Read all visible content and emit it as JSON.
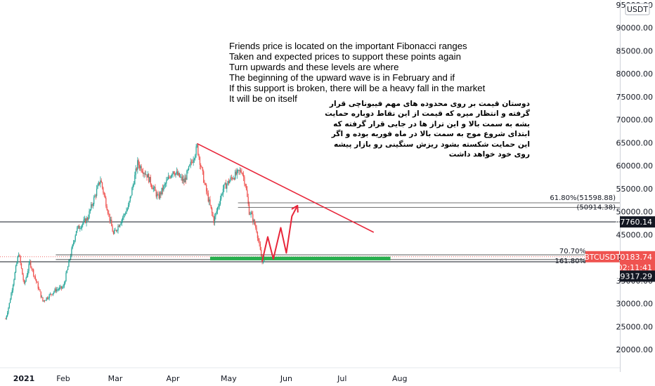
{
  "chart_data": {
    "type": "candlestick",
    "symbol": "BTCUSDT",
    "currency": "USDT",
    "y_axis": {
      "position": "right",
      "ylim": [
        16000,
        95000
      ],
      "ticks": [
        20000,
        25000,
        30000,
        35000,
        40000,
        45000,
        50000,
        55000,
        60000,
        65000,
        70000,
        75000,
        80000,
        85000,
        90000,
        95000
      ],
      "tick_labels": [
        "20000.00",
        "25000.00",
        "30000.00",
        "35000.00",
        "40000.00",
        "45000.00",
        "50000.00",
        "55000.00",
        "60000.00",
        "65000.00",
        "70000.00",
        "75000.00",
        "80000.00",
        "85000.00",
        "90000.00",
        "95000.00"
      ]
    },
    "x_axis": {
      "tick_labels": [
        "2021",
        "Feb",
        "Mar",
        "Apr",
        "May",
        "Jun",
        "Jul",
        "Aug"
      ],
      "tick_dates": [
        "2021-01-01",
        "2021-02-01",
        "2021-03-01",
        "2021-04-01",
        "2021-05-01",
        "2021-06-01",
        "2021-07-01",
        "2021-08-01"
      ],
      "range": [
        "2020-12-31",
        "2021-09-05"
      ]
    },
    "ohlc_close_path": [
      [
        "2020-12-31",
        25000
      ],
      [
        "2021-01-03",
        30000
      ],
      [
        "2021-01-08",
        41000
      ],
      [
        "2021-01-11",
        34000
      ],
      [
        "2021-01-14",
        39000
      ],
      [
        "2021-01-21",
        30500
      ],
      [
        "2021-01-28",
        33000
      ],
      [
        "2021-02-01",
        33500
      ],
      [
        "2021-02-08",
        46000
      ],
      [
        "2021-02-14",
        48500
      ],
      [
        "2021-02-21",
        57000
      ],
      [
        "2021-02-28",
        45000
      ],
      [
        "2021-03-08",
        51000
      ],
      [
        "2021-03-13",
        60500
      ],
      [
        "2021-03-18",
        58000
      ],
      [
        "2021-03-24",
        53000
      ],
      [
        "2021-04-01",
        59000
      ],
      [
        "2021-04-07",
        56500
      ],
      [
        "2021-04-14",
        64000
      ],
      [
        "2021-04-18",
        56000
      ],
      [
        "2021-04-23",
        48000
      ],
      [
        "2021-04-28",
        55000
      ],
      [
        "2021-05-03",
        57500
      ],
      [
        "2021-05-08",
        59000
      ],
      [
        "2021-05-10",
        56000
      ],
      [
        "2021-05-12",
        50000
      ],
      [
        "2021-05-13",
        49500
      ],
      [
        "2021-05-16",
        46000
      ],
      [
        "2021-05-19",
        39000
      ],
      [
        "2021-05-20",
        40000
      ]
    ],
    "price_lines": [
      {
        "name": "last_price",
        "value": 40183.74,
        "label": "40183.74",
        "color": "#ef5350"
      },
      {
        "name": "countdown",
        "label": "02:11:41",
        "color": "#ef5350"
      },
      {
        "name": "level_upper",
        "value": 47760.14,
        "label": "47760.14",
        "color": "#131722"
      },
      {
        "name": "level_lower",
        "value": 39317.29,
        "label": "39317.29",
        "color": "#131722"
      }
    ],
    "symbol_badge": {
      "label": "BTCUSDT",
      "color": "#ef5350"
    },
    "fib_levels": [
      {
        "label": "61.80%(51598.88)",
        "value": 51598.88
      },
      {
        "label": "(50914.38)",
        "value": 50914.38
      },
      {
        "label": "70.70%",
        "value": 40600
      },
      {
        "label": "161.80%",
        "value": 39800
      }
    ],
    "trendline": {
      "from": [
        "2021-04-14",
        64800
      ],
      "to": [
        "2021-07-18",
        45500
      ],
      "color": "#e8263a"
    },
    "support_zone": {
      "from_date": "2021-04-21",
      "to_date": "2021-07-27",
      "low": 39400,
      "high": 40200,
      "color": "#27ae4e"
    },
    "projection_path": [
      [
        "2021-05-19",
        39200
      ],
      [
        "2021-05-22",
        44500
      ],
      [
        "2021-05-25",
        39700
      ],
      [
        "2021-05-29",
        46500
      ],
      [
        "2021-06-01",
        41000
      ],
      [
        "2021-06-04",
        49000
      ],
      [
        "2021-06-07",
        51300
      ]
    ],
    "colors": {
      "up": "#26a69a",
      "down": "#ef5350",
      "text": "#131722",
      "arrow": "#e8263a"
    },
    "annotation_en": [
      "Friends price is located on the important Fibonacci ranges",
      "Taken and expected prices to support these points again",
      "Turn upwards and these levels are where",
      "The beginning of the upward wave is in February and if",
      "If this support is broken, there will be a heavy fall in the market",
      "It will be on itself"
    ],
    "annotation_fa": [
      "دوستان قیمت بر روی محدوده های مهم فیبوناچی قرار",
      "گرفته و انتظار میره که قیمت از این نقاط دوباره حمایت",
      "بشه به سمت بالا و این تراز ها در جایی قرار گرفته که",
      "ابتدای شروع موج به سمت بالا در ماه فوریه بوده و اگر",
      "این حمایت شکسته بشود ریزش سنگینی رو بازار پیشه",
      "روی خود خواهد داشت"
    ]
  }
}
